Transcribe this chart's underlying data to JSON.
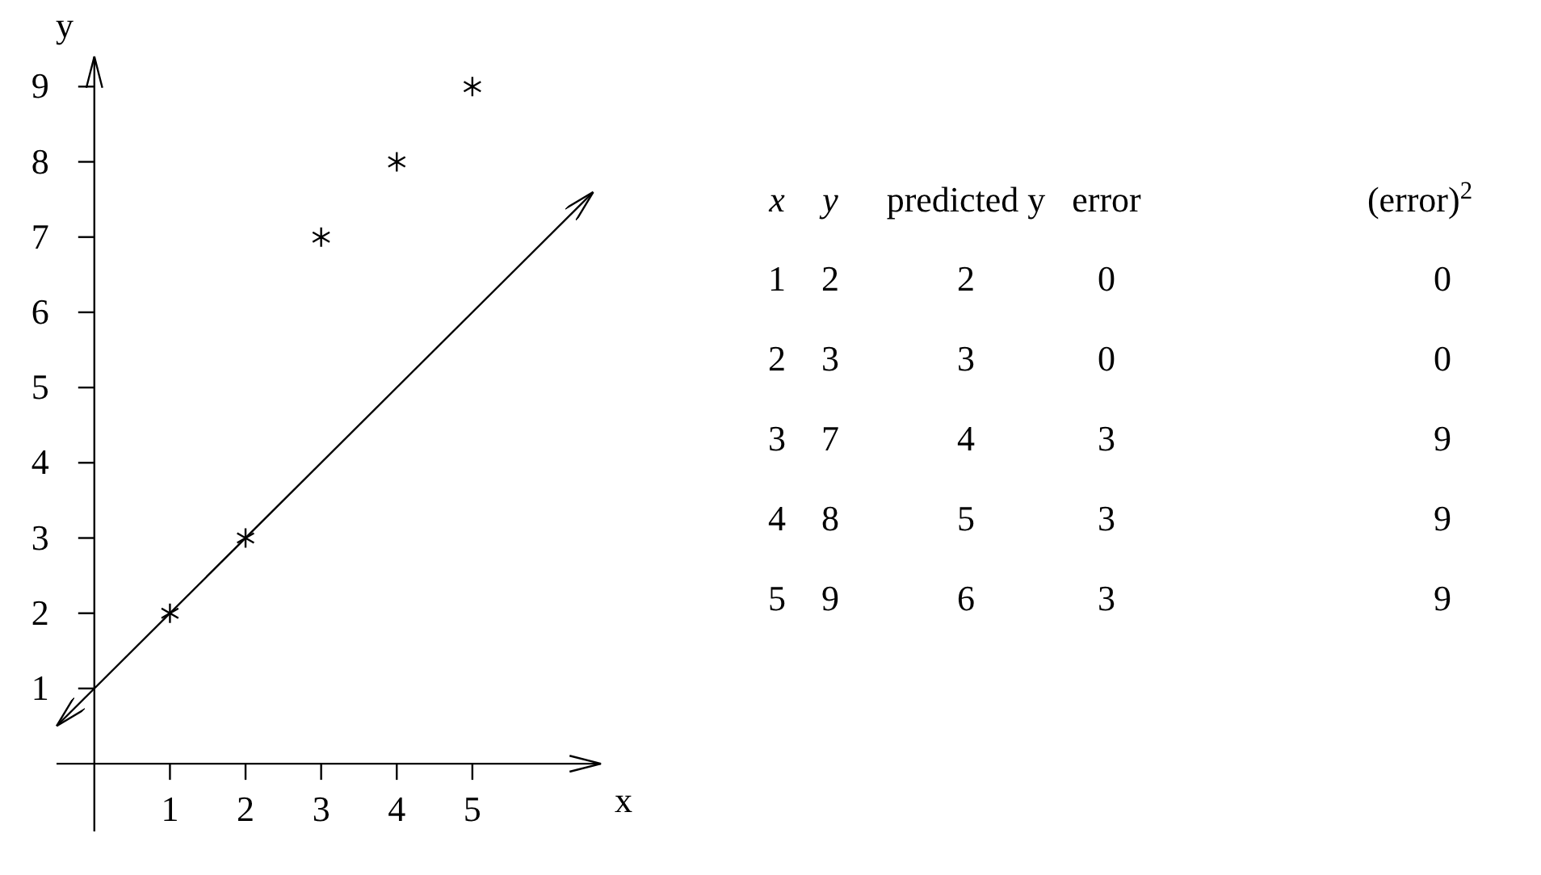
{
  "chart_data": [
    {
      "type": "scatter",
      "xlabel": "x",
      "ylabel": "y",
      "xlim": [
        -0.5,
        6.7
      ],
      "ylim": [
        -0.9,
        9.4
      ],
      "xticks": [
        1,
        2,
        3,
        4,
        5
      ],
      "yticks": [
        1,
        2,
        3,
        4,
        5,
        6,
        7,
        8,
        9
      ],
      "series": [
        {
          "type": "scatter",
          "color": "#000000",
          "marker": "cross",
          "x": [
            1,
            2,
            3,
            4,
            5
          ],
          "values": [
            2,
            3,
            7,
            8,
            9
          ]
        },
        {
          "type": "line",
          "color": "#000000",
          "marker": "none",
          "line_style": "solid",
          "x": [
            -0.5,
            6.6
          ],
          "values": [
            0.5,
            7.6
          ]
        }
      ]
    },
    {
      "type": "heatmap",
      "data_labels": true,
      "categories": [
        "x",
        "y",
        "predicted y",
        "error",
        "(error)$^{2}$"
      ],
      "y_categories": [
        null,
        null,
        null,
        null,
        null
      ],
      "cells": [
        [
          1,
          2,
          2,
          0,
          0
        ],
        [
          2,
          3,
          3,
          0,
          0
        ],
        [
          3,
          7,
          4,
          3,
          9
        ],
        [
          4,
          8,
          5,
          3,
          9
        ],
        [
          5,
          9,
          6,
          3,
          9
        ]
      ]
    }
  ]
}
